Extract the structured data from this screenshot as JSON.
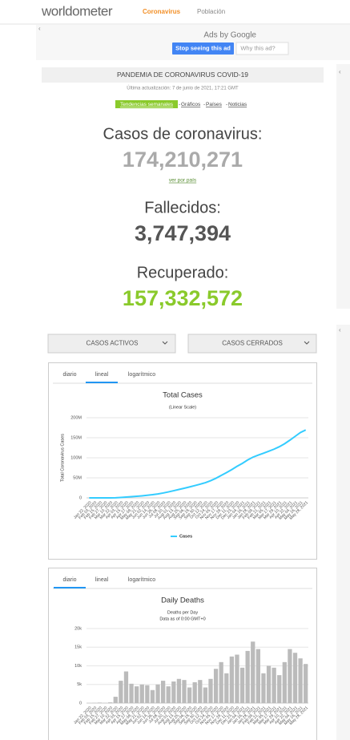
{
  "header": {
    "logo": "worldometer",
    "nav": [
      "Coronavirus",
      "Población"
    ]
  },
  "ad": {
    "label": "Ads by Google",
    "stop": "Stop seeing this ad",
    "why": "Why this ad?"
  },
  "main": {
    "title": "PANDEMIA DE CORONAVIRUS COVID-19",
    "updated": "Última actualización: 7 de junio de 2021, 17:21 GMT",
    "links": [
      "Tendencias semanales",
      "Gráficos",
      "Países",
      "Noticias"
    ],
    "cases_label": "Casos de coronavirus:",
    "cases": "174,210,271",
    "by_country": "ver por país",
    "deaths_label": "Fallecidos:",
    "deaths": "3,747,394",
    "recovered_label": "Recuperado:",
    "recovered": "157,332,572"
  },
  "dropdowns": [
    "CASOS ACTIVOS",
    "CASOS CERRADOS"
  ],
  "chart_data": [
    {
      "type": "line",
      "tabs": [
        "diario",
        "lineal",
        "logarítmico"
      ],
      "title": "Total Cases",
      "subtitle": "(Linear Scale)",
      "y_label": "Total Coronavirus Cases",
      "categories": [
        "Jan 22, 2020",
        "Feb 03, 2020",
        "Feb 15, 2020",
        "Feb 27, 2020",
        "Mar 10, 2020",
        "Mar 22, 2020",
        "Apr 03, 2020",
        "Apr 15, 2020",
        "Apr 27, 2020",
        "May 09, 2020",
        "May 21, 2020",
        "Jun 02, 2020",
        "Jun 14, 2020",
        "Jun 26, 2020",
        "Jul 08, 2020",
        "Jul 20, 2020",
        "Aug 01, 2020",
        "Aug 13, 2020",
        "Aug 25, 2020",
        "Sep 06, 2020",
        "Sep 18, 2020",
        "Sep 30, 2020",
        "Oct 12, 2020",
        "Oct 24, 2020",
        "Nov 05, 2020",
        "Nov 17, 2020",
        "Nov 29, 2020",
        "Dec 11, 2020",
        "Dec 23, 2020",
        "Jan 04, 2021",
        "Jan 16, 2021",
        "Jan 28, 2021",
        "Feb 09, 2021",
        "Feb 21, 2021",
        "Mar 05, 2021",
        "Mar 17, 2021",
        "Mar 29, 2021",
        "Apr 10, 2021",
        "Apr 22, 2021",
        "May 04, 2021",
        "May 16, 2021",
        "May 28, 2021"
      ],
      "series": [
        {
          "name": "Cases",
          "color": "#33ccff",
          "values": [
            557,
            19900,
            69000,
            83000,
            119000,
            337000,
            1100000,
            2000000,
            3050000,
            4000000,
            5100000,
            6400000,
            7900000,
            9800000,
            12100000,
            14900000,
            17900000,
            21000000,
            24000000,
            27200000,
            30600000,
            34100000,
            37900000,
            42900000,
            48900000,
            56100000,
            62900000,
            70500000,
            78700000,
            86000000,
            94500000,
            101500000,
            106600000,
            111300000,
            116400000,
            121500000,
            127600000,
            135000000,
            144000000,
            153500000,
            163000000,
            169500000
          ]
        }
      ],
      "ylim": [
        0,
        200000000
      ],
      "yticks": [
        0,
        {
          "value": 50000000,
          "label": "50M"
        },
        {
          "value": 100000000,
          "label": "100M"
        },
        {
          "value": 150000000,
          "label": "150M"
        },
        {
          "value": 200000000,
          "label": "200M"
        }
      ],
      "grid": true
    },
    {
      "type": "bar",
      "tabs": [
        "diario",
        "lineal",
        "logarítmico"
      ],
      "title": "Daily Deaths",
      "subtitle": "Deaths per Day",
      "note": "Data as of 0:00 GMT+0",
      "categories": [
        "Jan 22, 2020",
        "Feb 03, 2020",
        "Feb 15, 2020",
        "Feb 27, 2020",
        "Mar 10, 2020",
        "Mar 22, 2020",
        "Apr 03, 2020",
        "Apr 15, 2020",
        "Apr 27, 2020",
        "May 09, 2020",
        "May 21, 2020",
        "Jun 02, 2020",
        "Jun 14, 2020",
        "Jun 26, 2020",
        "Jul 08, 2020",
        "Jul 20, 2020",
        "Aug 01, 2020",
        "Aug 13, 2020",
        "Aug 25, 2020",
        "Sep 06, 2020",
        "Sep 18, 2020",
        "Sep 30, 2020",
        "Oct 12, 2020",
        "Oct 24, 2020",
        "Nov 05, 2020",
        "Nov 17, 2020",
        "Nov 29, 2020",
        "Dec 11, 2020",
        "Dec 23, 2020",
        "Jan 04, 2021",
        "Jan 16, 2021",
        "Jan 28, 2021",
        "Feb 09, 2021",
        "Feb 21, 2021",
        "Mar 05, 2021",
        "Mar 17, 2021",
        "Mar 29, 2021",
        "Apr 10, 2021",
        "Apr 22, 2021",
        "May 04, 2021",
        "May 16, 2021",
        "May 28, 2021"
      ],
      "values": [
        17,
        64,
        143,
        50,
        200,
        1700,
        6000,
        8500,
        5200,
        4500,
        5000,
        4800,
        3500,
        5000,
        6000,
        4500,
        5800,
        6500,
        6200,
        4200,
        5600,
        6200,
        4200,
        6500,
        9200,
        11000,
        8000,
        12500,
        13000,
        9500,
        14000,
        16500,
        14500,
        8000,
        10000,
        9500,
        7500,
        11000,
        14500,
        13500,
        12000,
        10500
      ],
      "color": "#bbbbbb",
      "ylim": [
        0,
        20000
      ],
      "yticks": [
        0,
        {
          "value": 5000,
          "label": "5k"
        },
        {
          "value": 10000,
          "label": "10k"
        },
        {
          "value": 15000,
          "label": "15k"
        },
        {
          "value": 20000,
          "label": "20k"
        }
      ],
      "grid": true
    }
  ]
}
